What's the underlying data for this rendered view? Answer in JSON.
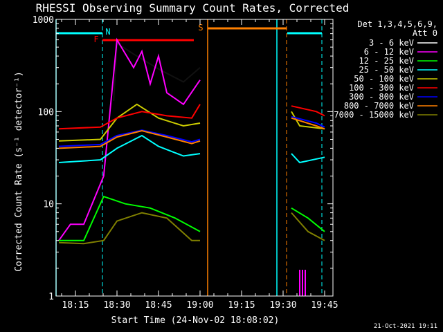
{
  "chart_data": {
    "type": "line",
    "title": "RHESSI Observing Summary Count Rates, Corrected",
    "xlabel": "Start Time (24-Nov-02 18:08:02)",
    "ylabel": "Corrected Count Rate (s⁻¹ detector⁻¹)",
    "x_scale": "time",
    "y_scale": "log",
    "xlim": [
      "18:08",
      "19:48"
    ],
    "ylim": [
      1,
      1000
    ],
    "x_ticks": [
      "18:15",
      "18:30",
      "18:45",
      "19:00",
      "19:15",
      "19:30",
      "19:45"
    ],
    "y_ticks": [
      {
        "value": 1,
        "label": "1"
      },
      {
        "value": 10,
        "label": "10"
      },
      {
        "value": 100,
        "label": "100"
      },
      {
        "value": 1000,
        "label": "1000"
      }
    ],
    "legend_header": [
      "Det 1,3,4,5,6,9,",
      "Att 0"
    ],
    "legend_position": "right",
    "footer": "21-Oct-2021 19:11",
    "series": [
      {
        "name": "3 - 6 keV",
        "color": "#000000",
        "values": [
          [
            18.48,
            130
          ],
          [
            18.5,
            550
          ],
          [
            18.6,
            420
          ],
          [
            18.75,
            290
          ],
          [
            18.9,
            210
          ],
          [
            19.0,
            300
          ]
        ]
      },
      {
        "name": "6 - 12 keV",
        "color": "#ff00ff",
        "values": [
          [
            18.15,
            4
          ],
          [
            18.22,
            6
          ],
          [
            18.3,
            6
          ],
          [
            18.42,
            20
          ],
          [
            18.5,
            600
          ],
          [
            18.6,
            300
          ],
          [
            18.65,
            450
          ],
          [
            18.7,
            200
          ],
          [
            18.75,
            400
          ],
          [
            18.8,
            160
          ],
          [
            18.9,
            120
          ],
          [
            19.0,
            220
          ]
        ]
      },
      {
        "name": "12 - 25 keV",
        "color": "#00ff00",
        "values": [
          [
            18.15,
            4
          ],
          [
            18.3,
            4
          ],
          [
            18.42,
            12
          ],
          [
            18.55,
            10
          ],
          [
            18.7,
            9
          ],
          [
            18.85,
            7
          ],
          [
            19.0,
            5
          ],
          [
            19.55,
            9
          ],
          [
            19.65,
            7
          ],
          [
            19.75,
            5
          ]
        ]
      },
      {
        "name": "25 - 50 keV",
        "color": "#00ffff",
        "values": [
          [
            18.15,
            28
          ],
          [
            18.4,
            30
          ],
          [
            18.5,
            40
          ],
          [
            18.65,
            55
          ],
          [
            18.75,
            42
          ],
          [
            18.9,
            33
          ],
          [
            19.0,
            35
          ],
          [
            19.55,
            35
          ],
          [
            19.6,
            28
          ],
          [
            19.75,
            32
          ]
        ]
      },
      {
        "name": "50 - 100 keV",
        "color": "#cccc00",
        "values": [
          [
            18.15,
            48
          ],
          [
            18.4,
            50
          ],
          [
            18.5,
            85
          ],
          [
            18.62,
            120
          ],
          [
            18.75,
            85
          ],
          [
            18.9,
            70
          ],
          [
            19.0,
            75
          ],
          [
            19.55,
            100
          ],
          [
            19.6,
            70
          ],
          [
            19.75,
            65
          ]
        ]
      },
      {
        "name": "100 - 300 keV",
        "color": "#ff0000",
        "values": [
          [
            18.15,
            65
          ],
          [
            18.4,
            68
          ],
          [
            18.5,
            85
          ],
          [
            18.65,
            100
          ],
          [
            18.8,
            90
          ],
          [
            18.95,
            85
          ],
          [
            19.0,
            120
          ],
          [
            19.55,
            115
          ],
          [
            19.7,
            100
          ],
          [
            19.75,
            90
          ]
        ]
      },
      {
        "name": "300 - 800 keV",
        "color": "#0000ff",
        "values": [
          [
            18.15,
            42
          ],
          [
            18.4,
            44
          ],
          [
            18.5,
            55
          ],
          [
            18.65,
            63
          ],
          [
            18.8,
            55
          ],
          [
            18.95,
            47
          ],
          [
            19.0,
            50
          ],
          [
            19.55,
            88
          ],
          [
            19.7,
            75
          ],
          [
            19.75,
            68
          ]
        ]
      },
      {
        "name": "800 - 7000 keV",
        "color": "#ff8000",
        "values": [
          [
            18.15,
            40
          ],
          [
            18.4,
            42
          ],
          [
            18.5,
            53
          ],
          [
            18.65,
            62
          ],
          [
            18.8,
            53
          ],
          [
            18.95,
            45
          ],
          [
            19.0,
            48
          ],
          [
            19.55,
            85
          ],
          [
            19.7,
            70
          ],
          [
            19.75,
            65
          ]
        ]
      },
      {
        "name": "7000 - 15000 keV",
        "color": "#808000",
        "values": [
          [
            18.15,
            3.8
          ],
          [
            18.3,
            3.7
          ],
          [
            18.42,
            4
          ],
          [
            18.5,
            6.5
          ],
          [
            18.65,
            8
          ],
          [
            18.8,
            7
          ],
          [
            18.95,
            4
          ],
          [
            19.0,
            4
          ],
          [
            19.55,
            8
          ],
          [
            19.65,
            5
          ],
          [
            19.75,
            4
          ]
        ]
      }
    ],
    "annotations": [
      {
        "label": "F",
        "color": "#ff0000",
        "note": "flare flag bar",
        "x_range": [
          "18:27",
          "18:58"
        ]
      },
      {
        "label": "N",
        "color": "#00ffff",
        "note": "night marker",
        "x_range": [
          "18:08",
          "18:25"
        ]
      },
      {
        "label": "S",
        "color": "#ff8000",
        "note": "SAA flag bar",
        "x_range": [
          "19:02",
          "19:34"
        ]
      }
    ]
  }
}
